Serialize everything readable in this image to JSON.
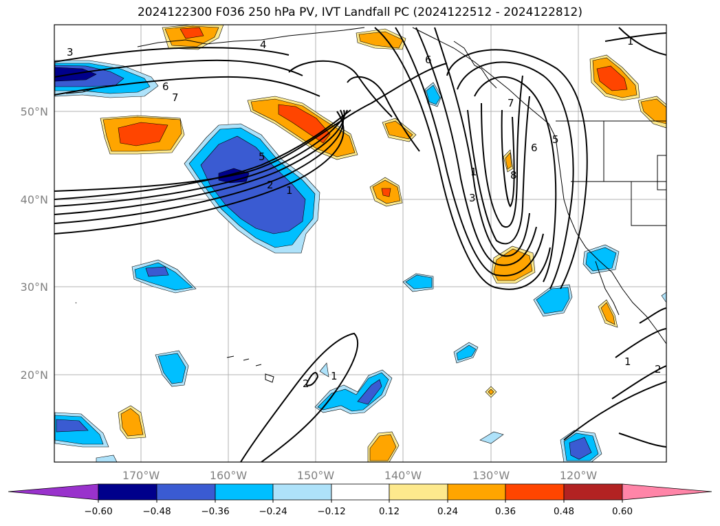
{
  "title": "2024122300 F036 250 hPa PV, IVT Landfall PC (2024122512 - 2024122812)",
  "map": {
    "lon_labels": [
      "170°W",
      "160°W",
      "150°W",
      "140°W",
      "130°W",
      "120°W"
    ],
    "lat_labels": [
      "50°N",
      "40°N",
      "30°N",
      "20°N"
    ],
    "contour_labels": [
      "3",
      "4",
      "6",
      "7",
      "6",
      "5",
      "2",
      "1",
      "1",
      "3",
      "7",
      "8",
      "6",
      "5",
      "1",
      "1",
      "2",
      "2",
      "1"
    ]
  },
  "colorbar": {
    "colors": [
      "#9932cc",
      "#00008b",
      "#3a5bd2",
      "#00bfff",
      "#aee2fa",
      "#ffffff",
      "#fde98d",
      "#ffa500",
      "#ff4500",
      "#b22222",
      "#ff85a8"
    ],
    "ticks": [
      "−0.60",
      "−0.48",
      "−0.36",
      "−0.24",
      "−0.12",
      "0.12",
      "0.24",
      "0.36",
      "0.48",
      "0.60"
    ]
  }
}
